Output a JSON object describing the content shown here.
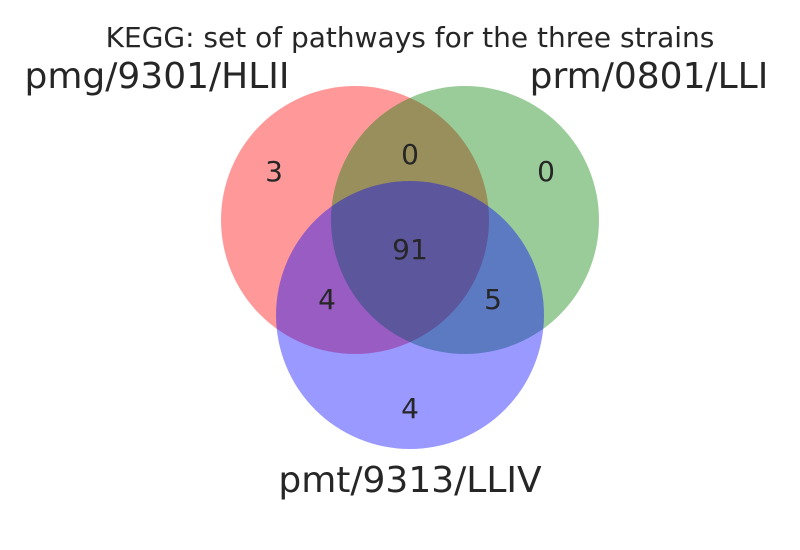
{
  "title": "KEGG: set of pathways for the three strains",
  "sets": [
    {
      "key": "A",
      "label": "pmg/9301/HLII",
      "color": "#ff0000"
    },
    {
      "key": "B",
      "label": "prm/0801/LLI",
      "color": "#008000"
    },
    {
      "key": "C",
      "label": "pmt/9313/LLIV",
      "color": "#0000ff"
    }
  ],
  "regions": {
    "A_only": "3",
    "B_only": "0",
    "C_only": "4",
    "AB_only": "0",
    "AC_only": "4",
    "BC_only": "5",
    "ABC": "91"
  },
  "style": {
    "circle_opacity": 0.4
  }
}
